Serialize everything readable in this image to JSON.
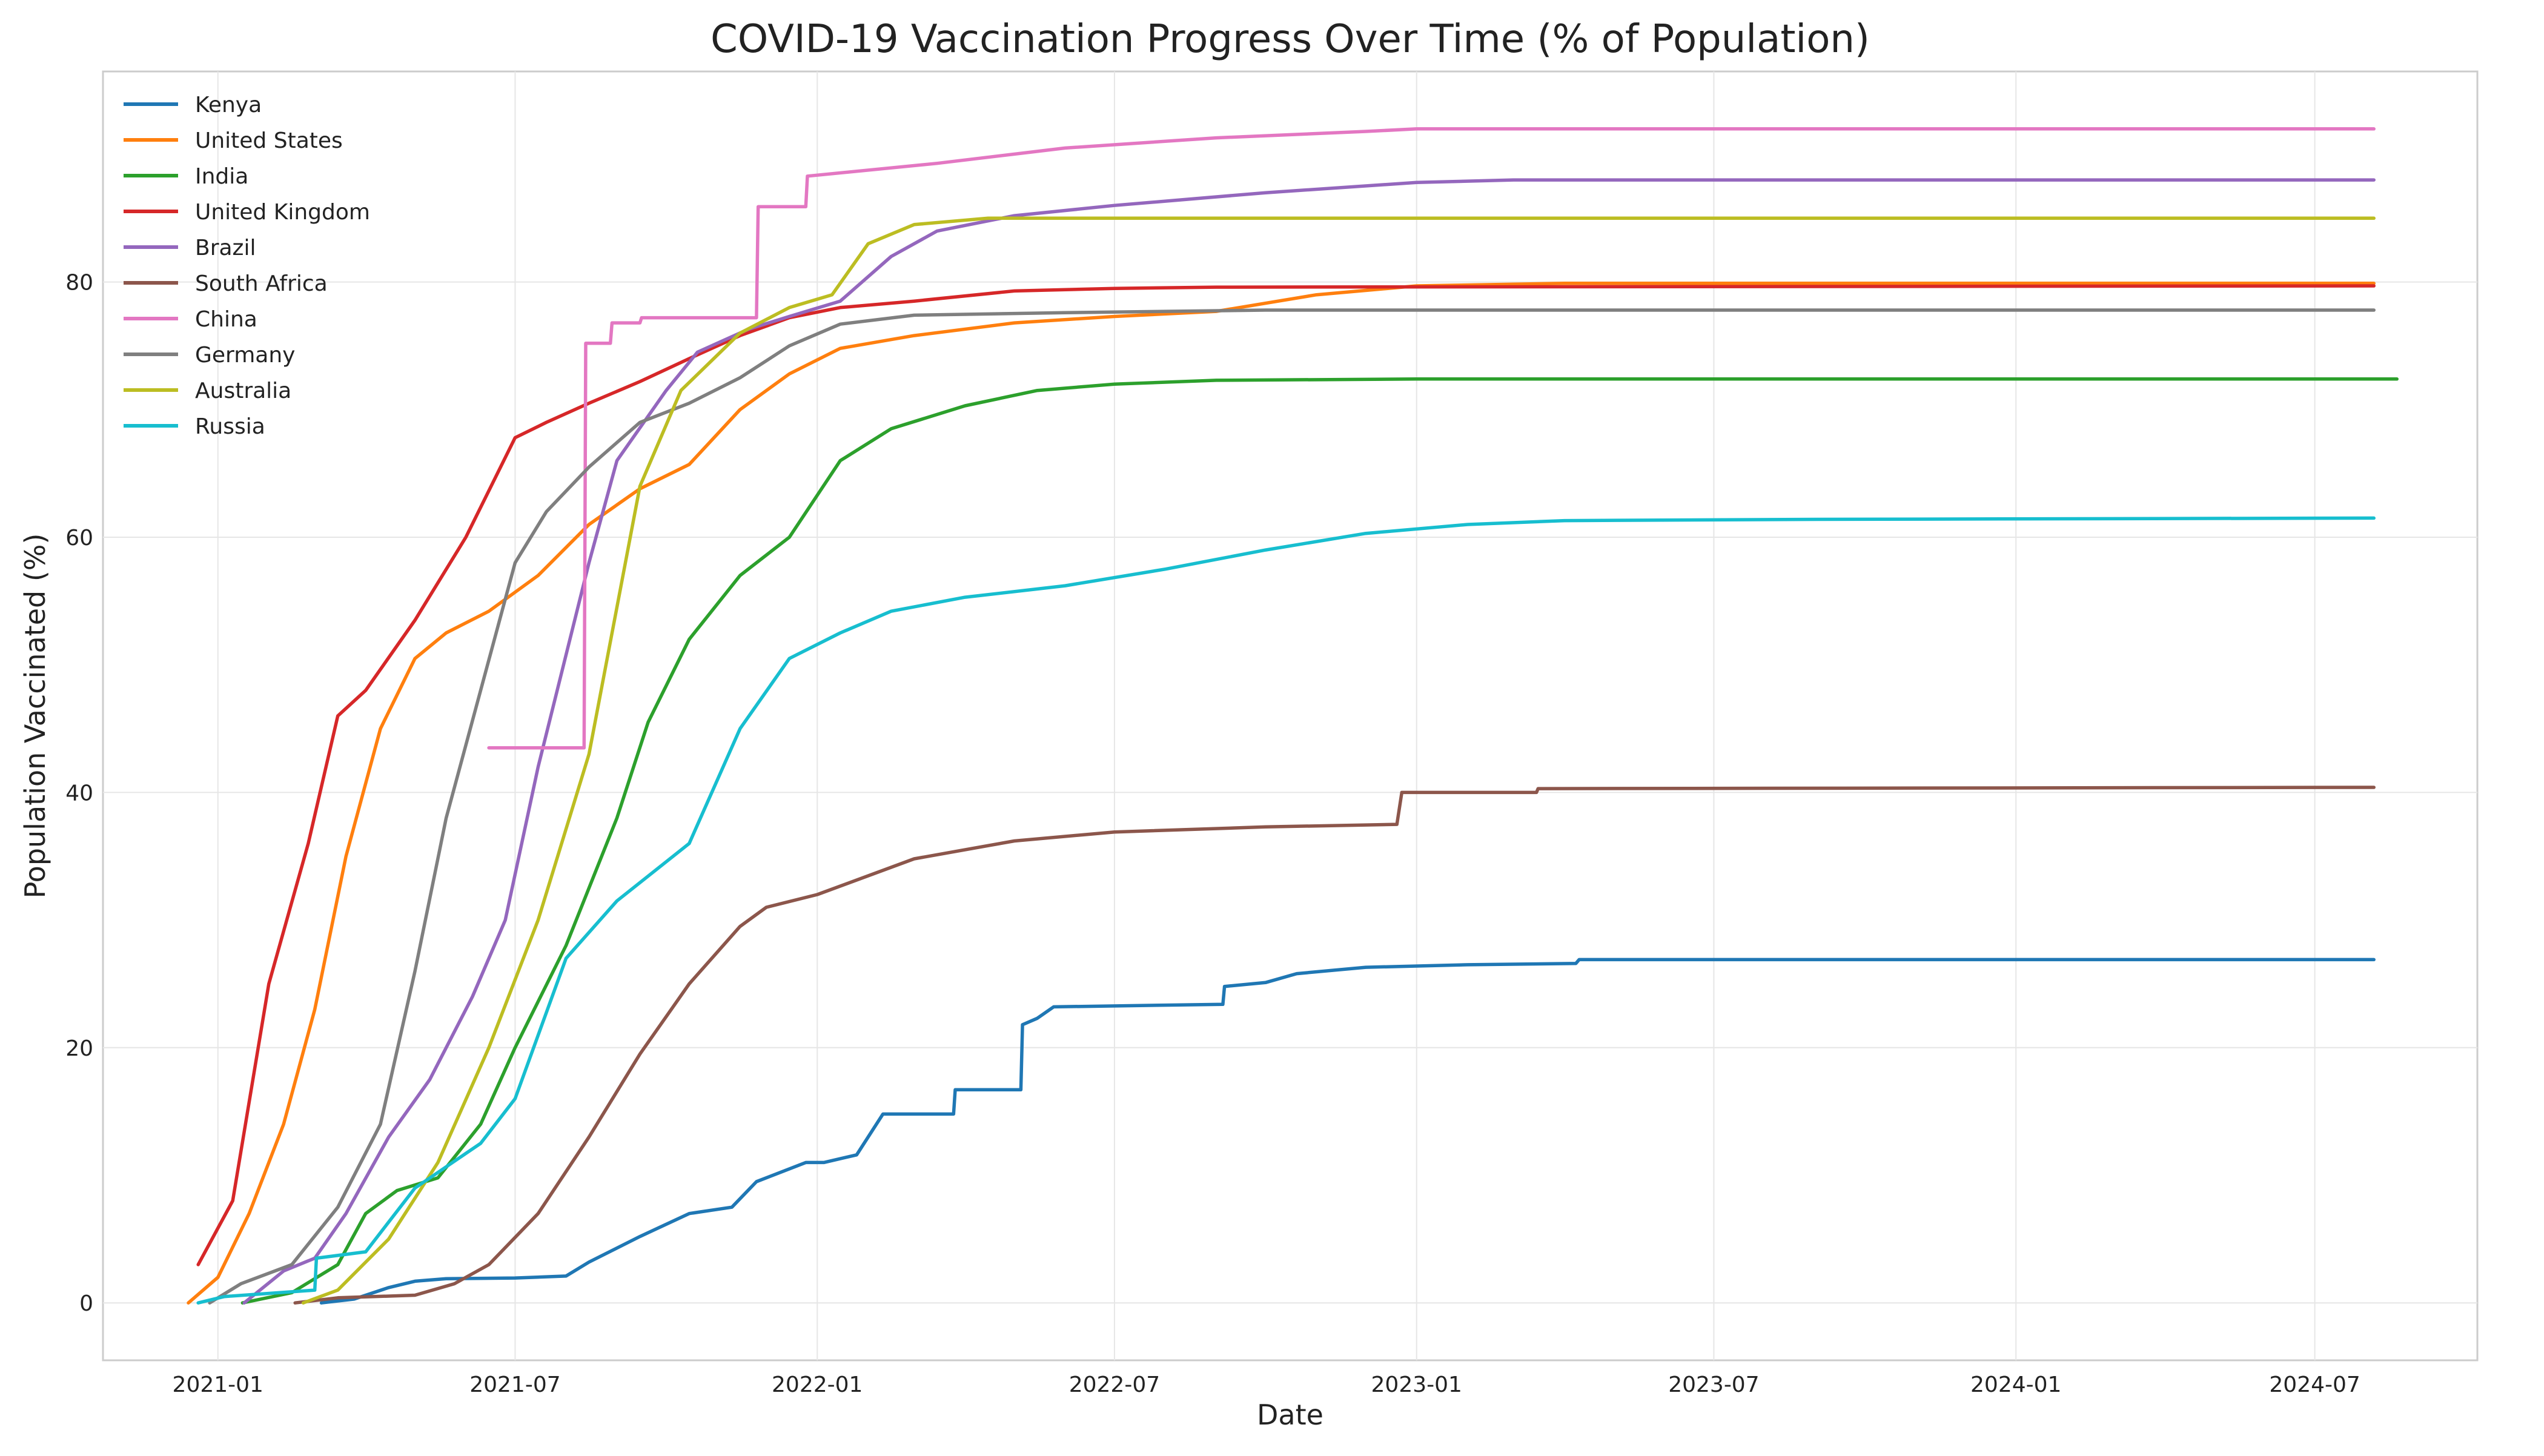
{
  "chart_data": {
    "type": "line",
    "title": "COVID-19 Vaccination Progress Over Time (% of Population)",
    "xlabel": "Date",
    "ylabel": "Population Vaccinated (%)",
    "x_type": "date",
    "xlim": [
      "2020-10-23",
      "2024-10-08"
    ],
    "ylim": [
      -4.5,
      96.5
    ],
    "x_ticks": [
      "2021-01-01",
      "2021-07-01",
      "2022-01-01",
      "2022-07-01",
      "2023-01-01",
      "2023-07-01",
      "2024-01-01",
      "2024-07-01"
    ],
    "x_tick_labels": [
      "2021-01",
      "2021-07",
      "2022-01",
      "2022-07",
      "2023-01",
      "2023-07",
      "2024-01",
      "2024-07"
    ],
    "y_ticks": [
      0,
      20,
      40,
      60,
      80
    ],
    "y_tick_labels": [
      "0",
      "20",
      "40",
      "60",
      "80"
    ],
    "grid": true,
    "legend_position": "top-left",
    "series": [
      {
        "name": "Kenya",
        "color": "#1f77b4",
        "points": [
          [
            "2021-03-05",
            0
          ],
          [
            "2021-03-25",
            0.3
          ],
          [
            "2021-04-15",
            1.2
          ],
          [
            "2021-05-01",
            1.7
          ],
          [
            "2021-05-20",
            1.9
          ],
          [
            "2021-07-01",
            1.95
          ],
          [
            "2021-08-01",
            2.1
          ],
          [
            "2021-08-15",
            3.2
          ],
          [
            "2021-09-15",
            5.2
          ],
          [
            "2021-10-15",
            7.0
          ],
          [
            "2021-11-10",
            7.5
          ],
          [
            "2021-11-25",
            9.5
          ],
          [
            "2021-12-25",
            11.0
          ],
          [
            "2022-01-05",
            11.0
          ],
          [
            "2022-01-25",
            11.6
          ],
          [
            "2022-02-10",
            14.8
          ],
          [
            "2022-03-25",
            14.8
          ],
          [
            "2022-03-26",
            16.7
          ],
          [
            "2022-05-05",
            16.7
          ],
          [
            "2022-05-06",
            21.8
          ],
          [
            "2022-05-15",
            22.3
          ],
          [
            "2022-05-25",
            23.2
          ],
          [
            "2022-09-05",
            23.4
          ],
          [
            "2022-09-06",
            24.8
          ],
          [
            "2022-10-01",
            25.1
          ],
          [
            "2022-10-20",
            25.8
          ],
          [
            "2022-12-01",
            26.3
          ],
          [
            "2023-02-01",
            26.5
          ],
          [
            "2023-04-08",
            26.6
          ],
          [
            "2023-04-10",
            26.9
          ],
          [
            "2024-08-06",
            26.9
          ]
        ]
      },
      {
        "name": "United States",
        "color": "#ff7f0e",
        "points": [
          [
            "2020-12-14",
            0
          ],
          [
            "2021-01-01",
            2.0
          ],
          [
            "2021-01-20",
            7.0
          ],
          [
            "2021-02-10",
            14.0
          ],
          [
            "2021-03-01",
            23.0
          ],
          [
            "2021-03-20",
            35.0
          ],
          [
            "2021-04-10",
            45.0
          ],
          [
            "2021-05-01",
            50.5
          ],
          [
            "2021-05-20",
            52.5
          ],
          [
            "2021-06-15",
            54.2
          ],
          [
            "2021-07-15",
            57.0
          ],
          [
            "2021-08-15",
            61.0
          ],
          [
            "2021-09-15",
            63.8
          ],
          [
            "2021-10-15",
            65.7
          ],
          [
            "2021-11-15",
            70.0
          ],
          [
            "2021-12-15",
            72.8
          ],
          [
            "2022-01-15",
            74.8
          ],
          [
            "2022-03-01",
            75.8
          ],
          [
            "2022-05-01",
            76.8
          ],
          [
            "2022-07-01",
            77.3
          ],
          [
            "2022-09-01",
            77.7
          ],
          [
            "2022-11-01",
            79.0
          ],
          [
            "2023-01-01",
            79.7
          ],
          [
            "2023-04-01",
            79.9
          ],
          [
            "2024-08-06",
            79.9
          ]
        ]
      },
      {
        "name": "India",
        "color": "#2ca02c",
        "points": [
          [
            "2021-01-16",
            0
          ],
          [
            "2021-02-15",
            0.8
          ],
          [
            "2021-03-15",
            3.0
          ],
          [
            "2021-04-01",
            7.0
          ],
          [
            "2021-04-20",
            8.8
          ],
          [
            "2021-05-15",
            9.8
          ],
          [
            "2021-06-10",
            14.0
          ],
          [
            "2021-07-01",
            20.0
          ],
          [
            "2021-08-01",
            28.0
          ],
          [
            "2021-09-01",
            38.0
          ],
          [
            "2021-09-20",
            45.5
          ],
          [
            "2021-10-15",
            52.0
          ],
          [
            "2021-11-15",
            57.0
          ],
          [
            "2021-12-15",
            60.0
          ],
          [
            "2022-01-15",
            66.0
          ],
          [
            "2022-02-15",
            68.5
          ],
          [
            "2022-04-01",
            70.3
          ],
          [
            "2022-05-15",
            71.5
          ],
          [
            "2022-07-01",
            72.0
          ],
          [
            "2022-09-01",
            72.3
          ],
          [
            "2023-01-01",
            72.4
          ],
          [
            "2024-08-20",
            72.4
          ]
        ]
      },
      {
        "name": "United Kingdom",
        "color": "#d62728",
        "points": [
          [
            "2020-12-20",
            3.0
          ],
          [
            "2021-01-10",
            8.0
          ],
          [
            "2021-02-01",
            25.0
          ],
          [
            "2021-02-25",
            36.0
          ],
          [
            "2021-03-15",
            46.0
          ],
          [
            "2021-04-01",
            48.0
          ],
          [
            "2021-05-01",
            53.5
          ],
          [
            "2021-06-01",
            60.0
          ],
          [
            "2021-07-01",
            67.8
          ],
          [
            "2021-07-20",
            69.0
          ],
          [
            "2021-08-15",
            70.5
          ],
          [
            "2021-09-15",
            72.2
          ],
          [
            "2021-10-15",
            74.0
          ],
          [
            "2021-11-15",
            75.8
          ],
          [
            "2021-12-15",
            77.2
          ],
          [
            "2022-01-15",
            78.0
          ],
          [
            "2022-03-01",
            78.5
          ],
          [
            "2022-05-01",
            79.3
          ],
          [
            "2022-07-01",
            79.5
          ],
          [
            "2022-09-01",
            79.6
          ],
          [
            "2024-08-06",
            79.7
          ]
        ]
      },
      {
        "name": "Brazil",
        "color": "#9467bd",
        "points": [
          [
            "2021-01-17",
            0
          ],
          [
            "2021-02-10",
            2.5
          ],
          [
            "2021-03-01",
            3.5
          ],
          [
            "2021-03-20",
            7.0
          ],
          [
            "2021-04-15",
            13.0
          ],
          [
            "2021-05-10",
            17.5
          ],
          [
            "2021-06-05",
            24.0
          ],
          [
            "2021-06-25",
            30.0
          ],
          [
            "2021-07-15",
            42.0
          ],
          [
            "2021-08-15",
            58.0
          ],
          [
            "2021-09-01",
            66.0
          ],
          [
            "2021-10-01",
            71.5
          ],
          [
            "2021-10-20",
            74.5
          ],
          [
            "2021-11-20",
            76.3
          ],
          [
            "2021-12-15",
            77.3
          ],
          [
            "2022-01-15",
            78.5
          ],
          [
            "2022-02-15",
            82.0
          ],
          [
            "2022-03-15",
            84.0
          ],
          [
            "2022-05-01",
            85.2
          ],
          [
            "2022-07-01",
            86.0
          ],
          [
            "2022-10-01",
            87.0
          ],
          [
            "2023-01-01",
            87.8
          ],
          [
            "2023-03-01",
            88.0
          ],
          [
            "2024-08-06",
            88.0
          ]
        ]
      },
      {
        "name": "South Africa",
        "color": "#8c564b",
        "points": [
          [
            "2021-02-17",
            0
          ],
          [
            "2021-03-15",
            0.4
          ],
          [
            "2021-05-01",
            0.6
          ],
          [
            "2021-05-25",
            1.5
          ],
          [
            "2021-06-15",
            3.0
          ],
          [
            "2021-07-15",
            7.0
          ],
          [
            "2021-08-15",
            13.0
          ],
          [
            "2021-09-15",
            19.5
          ],
          [
            "2021-10-15",
            25.0
          ],
          [
            "2021-11-15",
            29.5
          ],
          [
            "2021-12-01",
            31.0
          ],
          [
            "2022-01-01",
            32.0
          ],
          [
            "2022-03-01",
            34.8
          ],
          [
            "2022-05-01",
            36.2
          ],
          [
            "2022-07-01",
            36.9
          ],
          [
            "2022-10-01",
            37.3
          ],
          [
            "2022-12-20",
            37.5
          ],
          [
            "2022-12-23",
            40.0
          ],
          [
            "2023-03-15",
            40.0
          ],
          [
            "2023-03-16",
            40.3
          ],
          [
            "2024-08-06",
            40.4
          ]
        ]
      },
      {
        "name": "China",
        "color": "#e377c2",
        "points": [
          [
            "2021-06-15",
            43.5
          ],
          [
            "2021-08-12",
            43.5
          ],
          [
            "2021-08-13",
            75.2
          ],
          [
            "2021-08-28",
            75.2
          ],
          [
            "2021-08-29",
            76.8
          ],
          [
            "2021-09-15",
            76.8
          ],
          [
            "2021-09-16",
            77.2
          ],
          [
            "2021-11-25",
            77.2
          ],
          [
            "2021-11-26",
            85.9
          ],
          [
            "2021-12-25",
            85.9
          ],
          [
            "2021-12-26",
            88.3
          ],
          [
            "2022-03-15",
            89.3
          ],
          [
            "2022-06-01",
            90.5
          ],
          [
            "2022-09-01",
            91.3
          ],
          [
            "2022-12-01",
            91.8
          ],
          [
            "2023-01-01",
            92.0
          ],
          [
            "2024-08-06",
            92.0
          ]
        ]
      },
      {
        "name": "Germany",
        "color": "#7f7f7f",
        "points": [
          [
            "2020-12-27",
            0
          ],
          [
            "2021-01-15",
            1.5
          ],
          [
            "2021-02-15",
            3.0
          ],
          [
            "2021-03-15",
            7.5
          ],
          [
            "2021-04-10",
            14.0
          ],
          [
            "2021-05-01",
            26.0
          ],
          [
            "2021-05-20",
            38.0
          ],
          [
            "2021-06-10",
            48.0
          ],
          [
            "2021-07-01",
            58.0
          ],
          [
            "2021-07-20",
            62.0
          ],
          [
            "2021-08-15",
            65.5
          ],
          [
            "2021-09-15",
            69.0
          ],
          [
            "2021-10-15",
            70.5
          ],
          [
            "2021-11-15",
            72.5
          ],
          [
            "2021-12-15",
            75.0
          ],
          [
            "2022-01-15",
            76.7
          ],
          [
            "2022-03-01",
            77.4
          ],
          [
            "2022-06-01",
            77.6
          ],
          [
            "2022-10-01",
            77.8
          ],
          [
            "2024-08-06",
            77.8
          ]
        ]
      },
      {
        "name": "Australia",
        "color": "#bcbd22",
        "points": [
          [
            "2021-02-22",
            0
          ],
          [
            "2021-03-15",
            1.0
          ],
          [
            "2021-04-15",
            5.0
          ],
          [
            "2021-05-15",
            11.0
          ],
          [
            "2021-06-15",
            20.0
          ],
          [
            "2021-07-15",
            30.0
          ],
          [
            "2021-08-15",
            43.0
          ],
          [
            "2021-09-15",
            64.0
          ],
          [
            "2021-10-10",
            71.5
          ],
          [
            "2021-11-15",
            76.0
          ],
          [
            "2021-12-15",
            78.0
          ],
          [
            "2022-01-10",
            79.0
          ],
          [
            "2022-02-01",
            83.0
          ],
          [
            "2022-03-01",
            84.5
          ],
          [
            "2022-04-15",
            85.0
          ],
          [
            "2024-08-06",
            85.0
          ]
        ]
      },
      {
        "name": "Russia",
        "color": "#17becf",
        "points": [
          [
            "2020-12-20",
            0
          ],
          [
            "2021-01-05",
            0.5
          ],
          [
            "2021-03-01",
            1.0
          ],
          [
            "2021-03-02",
            3.5
          ],
          [
            "2021-04-01",
            4.0
          ],
          [
            "2021-05-01",
            9.0
          ],
          [
            "2021-06-10",
            12.5
          ],
          [
            "2021-07-01",
            16.0
          ],
          [
            "2021-08-01",
            27.0
          ],
          [
            "2021-09-01",
            31.5
          ],
          [
            "2021-10-15",
            36.0
          ],
          [
            "2021-11-15",
            45.0
          ],
          [
            "2021-12-15",
            50.5
          ],
          [
            "2022-01-15",
            52.5
          ],
          [
            "2022-02-15",
            54.2
          ],
          [
            "2022-04-01",
            55.3
          ],
          [
            "2022-06-01",
            56.2
          ],
          [
            "2022-08-01",
            57.5
          ],
          [
            "2022-10-01",
            59.0
          ],
          [
            "2022-12-01",
            60.3
          ],
          [
            "2023-02-01",
            61.0
          ],
          [
            "2023-04-01",
            61.3
          ],
          [
            "2023-09-01",
            61.4
          ],
          [
            "2024-08-06",
            61.5
          ]
        ]
      }
    ]
  }
}
